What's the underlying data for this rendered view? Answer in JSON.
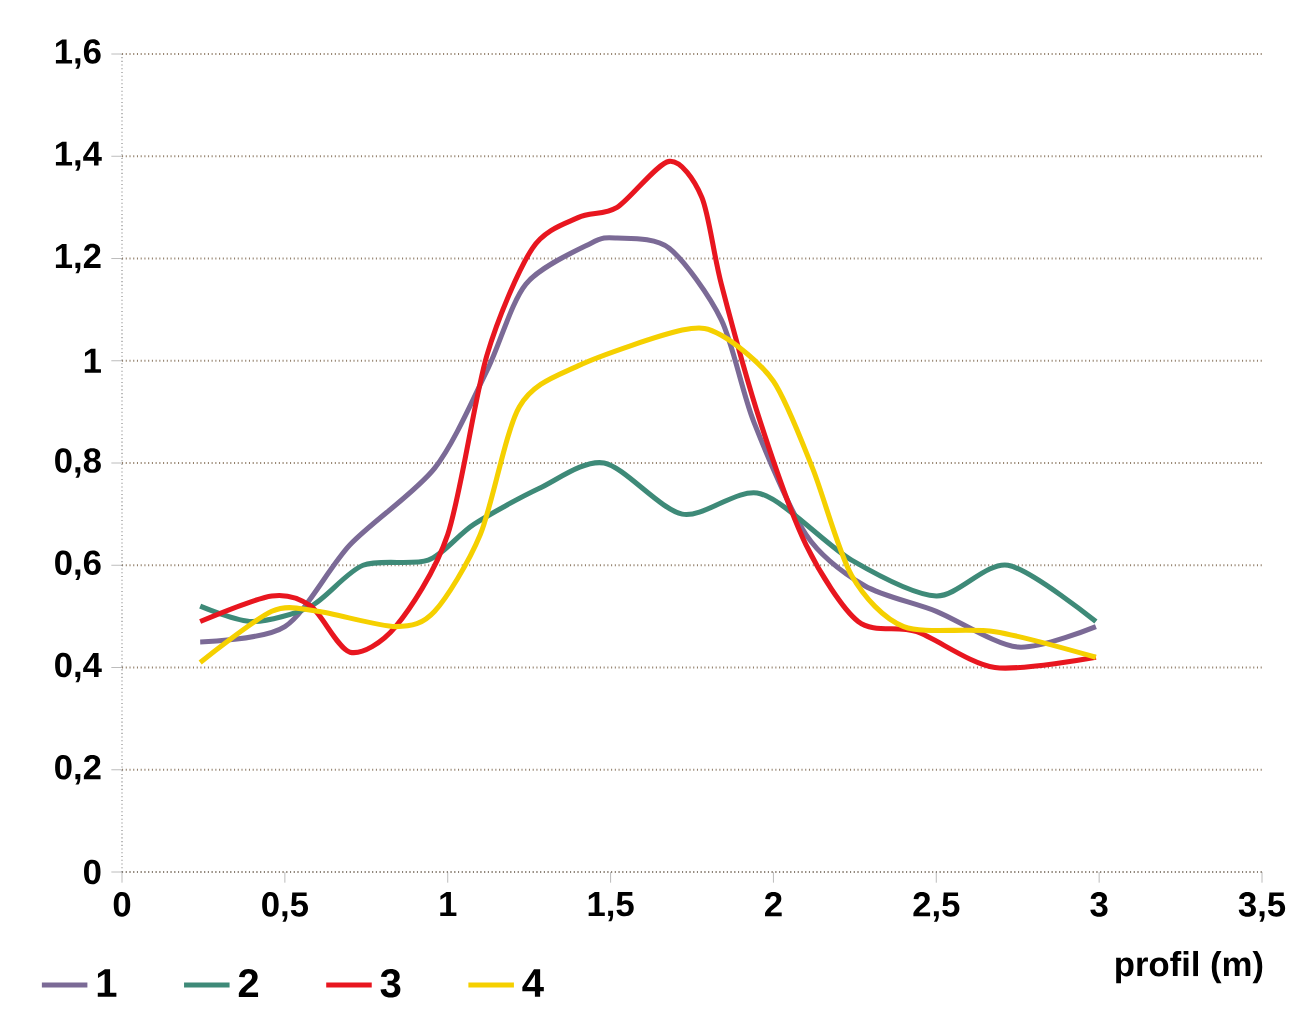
{
  "chart_data": {
    "type": "line",
    "xlabel": "profil (m)",
    "xlim": [
      0,
      3.5
    ],
    "ylim": [
      0,
      1.6
    ],
    "xticks": [
      0,
      {
        "value": 0.5,
        "label": "0,5"
      },
      1,
      {
        "value": 1.5,
        "label": "1,5"
      },
      2,
      {
        "value": 2.5,
        "label": "2,5"
      },
      3,
      {
        "value": 3.5,
        "label": "3,5"
      }
    ],
    "yticks": [
      0,
      {
        "value": 0.2,
        "label": "0,2"
      },
      {
        "value": 0.4,
        "label": "0,4"
      },
      {
        "value": 0.6,
        "label": "0,6"
      },
      {
        "value": 0.8,
        "label": "0,8"
      },
      1,
      {
        "value": 1.2,
        "label": "1,2"
      },
      {
        "value": 1.4,
        "label": "1,4"
      },
      {
        "value": 1.6,
        "label": "1,6"
      }
    ],
    "grid": "y",
    "legend": "bottom",
    "marker": "none",
    "line_style": "solid",
    "series": [
      {
        "name": "1",
        "color": "#7b6a96",
        "x": [
          0.24,
          0.5,
          0.7,
          0.96,
          1.12,
          1.24,
          1.44,
          1.52,
          1.68,
          1.84,
          1.94,
          2.1,
          2.28,
          2.5,
          2.75,
          2.99
        ],
        "values": [
          0.45,
          0.48,
          0.64,
          0.79,
          0.98,
          1.15,
          1.23,
          1.24,
          1.22,
          1.08,
          0.88,
          0.66,
          0.56,
          0.51,
          0.44,
          0.48
        ]
      },
      {
        "name": "2",
        "color": "#3e8a78",
        "x": [
          0.24,
          0.4,
          0.58,
          0.74,
          0.94,
          1.08,
          1.28,
          1.48,
          1.72,
          1.96,
          2.24,
          2.5,
          2.72,
          2.99
        ],
        "values": [
          0.52,
          0.49,
          0.52,
          0.6,
          0.61,
          0.68,
          0.75,
          0.8,
          0.7,
          0.74,
          0.61,
          0.54,
          0.6,
          0.49
        ]
      },
      {
        "name": "3",
        "color": "#e8161f",
        "x": [
          0.24,
          0.46,
          0.58,
          0.7,
          0.84,
          1.0,
          1.12,
          1.26,
          1.4,
          1.52,
          1.68,
          1.78,
          1.84,
          1.96,
          2.1,
          2.26,
          2.44,
          2.68,
          2.99
        ],
        "values": [
          0.49,
          0.54,
          0.52,
          0.43,
          0.48,
          0.66,
          1.01,
          1.22,
          1.28,
          1.3,
          1.39,
          1.32,
          1.15,
          0.88,
          0.64,
          0.49,
          0.47,
          0.4,
          0.42
        ]
      },
      {
        "name": "4",
        "color": "#f5d000",
        "x": [
          0.24,
          0.46,
          0.6,
          0.84,
          0.96,
          1.1,
          1.22,
          1.4,
          1.72,
          1.84,
          2.0,
          2.12,
          2.24,
          2.4,
          2.68,
          2.99
        ],
        "values": [
          0.41,
          0.51,
          0.51,
          0.48,
          0.51,
          0.66,
          0.91,
          0.99,
          1.06,
          1.05,
          0.96,
          0.79,
          0.58,
          0.48,
          0.47,
          0.42
        ]
      }
    ]
  }
}
